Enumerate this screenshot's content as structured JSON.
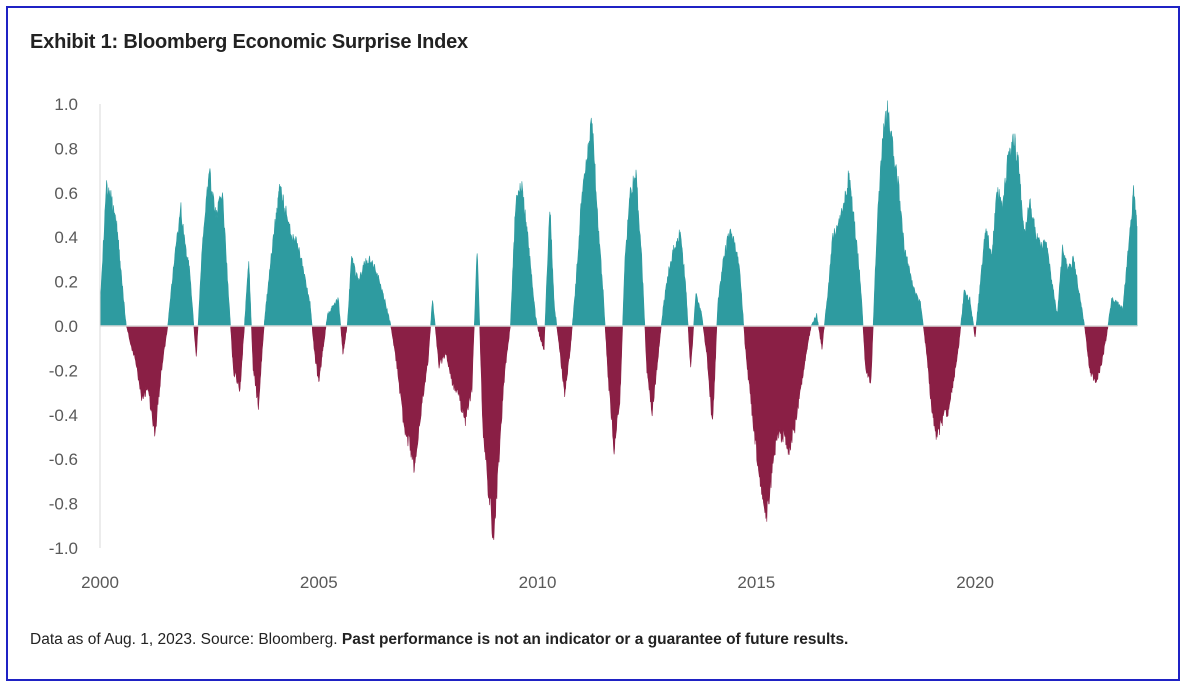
{
  "title": "Exhibit 1: Bloomberg Economic Surprise Index",
  "footnote": {
    "source": "Data as of Aug. 1, 2023. Source: Bloomberg.",
    "disclaimer": "Past performance is not an indicator or a guarantee of future results."
  },
  "colors": {
    "positive": "#2e9ba0",
    "negative": "#8a1f45",
    "border": "#1f22c4",
    "axis": "#d9d9d9",
    "text": "#222222",
    "tick_text": "#595959"
  },
  "chart_data": {
    "type": "area",
    "title": "Exhibit 1: Bloomberg Economic Surprise Index",
    "xlabel": "",
    "ylabel": "",
    "xlim": [
      2000,
      2023.7
    ],
    "ylim": [
      -1.0,
      1.0
    ],
    "x_ticks": [
      2000,
      2005,
      2010,
      2015,
      2020
    ],
    "y_ticks": [
      1.0,
      0.8,
      0.6,
      0.4,
      0.2,
      0.0,
      -0.2,
      -0.4,
      -0.6,
      -0.8,
      -1.0
    ],
    "grid": false,
    "legend": "none",
    "series": [
      {
        "positive_color": "#2e9ba0",
        "negative_color": "#8a1f45",
        "points": [
          [
            2000.0,
            0.1
          ],
          [
            2000.15,
            0.62
          ],
          [
            2000.3,
            0.55
          ],
          [
            2000.4,
            0.42
          ],
          [
            2000.5,
            0.2
          ],
          [
            2000.6,
            0.0
          ],
          [
            2000.8,
            -0.15
          ],
          [
            2000.95,
            -0.32
          ],
          [
            2001.1,
            -0.28
          ],
          [
            2001.25,
            -0.5
          ],
          [
            2001.4,
            -0.2
          ],
          [
            2001.55,
            0.0
          ],
          [
            2001.7,
            0.3
          ],
          [
            2001.85,
            0.52
          ],
          [
            2001.95,
            0.35
          ],
          [
            2002.05,
            0.25
          ],
          [
            2002.2,
            -0.15
          ],
          [
            2002.35,
            0.4
          ],
          [
            2002.5,
            0.68
          ],
          [
            2002.65,
            0.5
          ],
          [
            2002.8,
            0.58
          ],
          [
            2002.95,
            0.1
          ],
          [
            2003.05,
            -0.2
          ],
          [
            2003.2,
            -0.28
          ],
          [
            2003.3,
            0.0
          ],
          [
            2003.4,
            0.3
          ],
          [
            2003.5,
            -0.2
          ],
          [
            2003.62,
            -0.35
          ],
          [
            2003.75,
            0.0
          ],
          [
            2003.85,
            0.2
          ],
          [
            2004.0,
            0.45
          ],
          [
            2004.1,
            0.62
          ],
          [
            2004.2,
            0.55
          ],
          [
            2004.35,
            0.42
          ],
          [
            2004.5,
            0.38
          ],
          [
            2004.65,
            0.25
          ],
          [
            2004.8,
            0.1
          ],
          [
            2004.9,
            -0.12
          ],
          [
            2005.0,
            -0.25
          ],
          [
            2005.1,
            -0.1
          ],
          [
            2005.2,
            0.05
          ],
          [
            2005.3,
            0.08
          ],
          [
            2005.45,
            0.12
          ],
          [
            2005.55,
            -0.12
          ],
          [
            2005.65,
            0.0
          ],
          [
            2005.75,
            0.3
          ],
          [
            2005.9,
            0.2
          ],
          [
            2006.05,
            0.28
          ],
          [
            2006.2,
            0.3
          ],
          [
            2006.35,
            0.22
          ],
          [
            2006.5,
            0.12
          ],
          [
            2006.65,
            0.0
          ],
          [
            2006.8,
            -0.2
          ],
          [
            2006.95,
            -0.45
          ],
          [
            2007.1,
            -0.55
          ],
          [
            2007.2,
            -0.65
          ],
          [
            2007.35,
            -0.35
          ],
          [
            2007.5,
            -0.15
          ],
          [
            2007.6,
            0.12
          ],
          [
            2007.75,
            -0.18
          ],
          [
            2007.9,
            -0.12
          ],
          [
            2008.05,
            -0.25
          ],
          [
            2008.2,
            -0.32
          ],
          [
            2008.35,
            -0.42
          ],
          [
            2008.5,
            -0.28
          ],
          [
            2008.62,
            0.35
          ],
          [
            2008.75,
            -0.45
          ],
          [
            2008.88,
            -0.75
          ],
          [
            2009.0,
            -0.95
          ],
          [
            2009.12,
            -0.6
          ],
          [
            2009.25,
            -0.2
          ],
          [
            2009.38,
            0.0
          ],
          [
            2009.5,
            0.55
          ],
          [
            2009.62,
            0.65
          ],
          [
            2009.75,
            0.45
          ],
          [
            2009.85,
            0.25
          ],
          [
            2009.95,
            0.05
          ],
          [
            2010.05,
            -0.05
          ],
          [
            2010.15,
            -0.1
          ],
          [
            2010.28,
            0.55
          ],
          [
            2010.38,
            0.1
          ],
          [
            2010.5,
            -0.1
          ],
          [
            2010.62,
            -0.3
          ],
          [
            2010.75,
            -0.1
          ],
          [
            2010.88,
            0.2
          ],
          [
            2011.0,
            0.55
          ],
          [
            2011.12,
            0.72
          ],
          [
            2011.25,
            0.93
          ],
          [
            2011.38,
            0.45
          ],
          [
            2011.5,
            0.15
          ],
          [
            2011.62,
            -0.25
          ],
          [
            2011.75,
            -0.55
          ],
          [
            2011.88,
            -0.35
          ],
          [
            2012.0,
            0.3
          ],
          [
            2012.12,
            0.6
          ],
          [
            2012.25,
            0.68
          ],
          [
            2012.38,
            0.3
          ],
          [
            2012.5,
            -0.2
          ],
          [
            2012.62,
            -0.38
          ],
          [
            2012.75,
            -0.15
          ],
          [
            2012.88,
            0.1
          ],
          [
            2013.0,
            0.25
          ],
          [
            2013.12,
            0.35
          ],
          [
            2013.25,
            0.42
          ],
          [
            2013.38,
            0.2
          ],
          [
            2013.5,
            -0.2
          ],
          [
            2013.62,
            0.15
          ],
          [
            2013.75,
            0.05
          ],
          [
            2013.88,
            -0.15
          ],
          [
            2014.0,
            -0.45
          ],
          [
            2014.12,
            0.1
          ],
          [
            2014.25,
            0.3
          ],
          [
            2014.38,
            0.42
          ],
          [
            2014.5,
            0.38
          ],
          [
            2014.62,
            0.25
          ],
          [
            2014.75,
            -0.1
          ],
          [
            2014.88,
            -0.35
          ],
          [
            2015.0,
            -0.55
          ],
          [
            2015.12,
            -0.75
          ],
          [
            2015.25,
            -0.85
          ],
          [
            2015.38,
            -0.6
          ],
          [
            2015.5,
            -0.48
          ],
          [
            2015.62,
            -0.5
          ],
          [
            2015.75,
            -0.55
          ],
          [
            2015.88,
            -0.45
          ],
          [
            2016.0,
            -0.3
          ],
          [
            2016.12,
            -0.15
          ],
          [
            2016.25,
            0.0
          ],
          [
            2016.38,
            0.05
          ],
          [
            2016.5,
            -0.1
          ],
          [
            2016.62,
            0.12
          ],
          [
            2016.75,
            0.4
          ],
          [
            2016.88,
            0.45
          ],
          [
            2017.0,
            0.55
          ],
          [
            2017.12,
            0.68
          ],
          [
            2017.25,
            0.45
          ],
          [
            2017.38,
            0.2
          ],
          [
            2017.5,
            -0.2
          ],
          [
            2017.62,
            -0.25
          ],
          [
            2017.75,
            0.4
          ],
          [
            2017.88,
            0.85
          ],
          [
            2018.0,
            0.98
          ],
          [
            2018.12,
            0.8
          ],
          [
            2018.25,
            0.62
          ],
          [
            2018.38,
            0.35
          ],
          [
            2018.5,
            0.25
          ],
          [
            2018.62,
            0.15
          ],
          [
            2018.75,
            0.1
          ],
          [
            2018.88,
            -0.1
          ],
          [
            2019.0,
            -0.35
          ],
          [
            2019.12,
            -0.5
          ],
          [
            2019.25,
            -0.42
          ],
          [
            2019.38,
            -0.38
          ],
          [
            2019.5,
            -0.25
          ],
          [
            2019.62,
            -0.1
          ],
          [
            2019.75,
            0.15
          ],
          [
            2019.88,
            0.12
          ],
          [
            2020.0,
            -0.05
          ],
          [
            2020.12,
            0.2
          ],
          [
            2020.25,
            0.45
          ],
          [
            2020.38,
            0.3
          ],
          [
            2020.5,
            0.6
          ],
          [
            2020.62,
            0.55
          ],
          [
            2020.75,
            0.75
          ],
          [
            2020.88,
            0.85
          ],
          [
            2021.0,
            0.7
          ],
          [
            2021.12,
            0.4
          ],
          [
            2021.25,
            0.55
          ],
          [
            2021.38,
            0.42
          ],
          [
            2021.5,
            0.35
          ],
          [
            2021.62,
            0.38
          ],
          [
            2021.75,
            0.2
          ],
          [
            2021.88,
            0.05
          ],
          [
            2022.0,
            0.35
          ],
          [
            2022.12,
            0.25
          ],
          [
            2022.25,
            0.3
          ],
          [
            2022.38,
            0.15
          ],
          [
            2022.5,
            0.0
          ],
          [
            2022.62,
            -0.2
          ],
          [
            2022.75,
            -0.25
          ],
          [
            2022.88,
            -0.18
          ],
          [
            2023.0,
            -0.05
          ],
          [
            2023.12,
            0.12
          ],
          [
            2023.25,
            0.1
          ],
          [
            2023.38,
            0.08
          ],
          [
            2023.5,
            0.35
          ],
          [
            2023.62,
            0.6
          ],
          [
            2023.7,
            0.45
          ]
        ]
      }
    ]
  }
}
